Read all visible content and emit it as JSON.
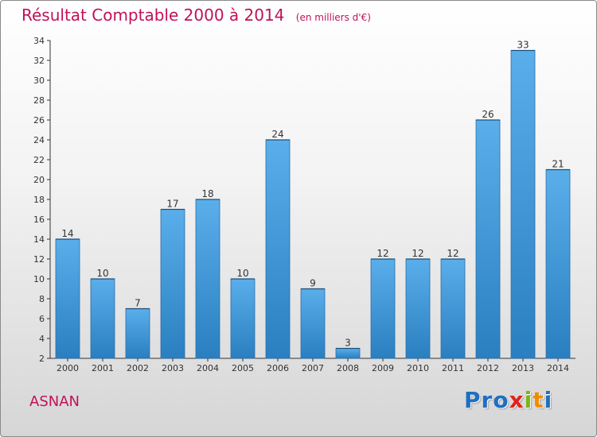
{
  "header": {
    "title": "Résultat Comptable 2000 à 2014",
    "subtitle": "(en milliers d'€)"
  },
  "footer": {
    "commune": "ASNAN",
    "logo_text": "Proxiti",
    "logo_letters": [
      {
        "ch": "P",
        "color": "#1f6fbf"
      },
      {
        "ch": "r",
        "color": "#1f6fbf"
      },
      {
        "ch": "o",
        "color": "#1f6fbf"
      },
      {
        "ch": "x",
        "color": "#e2231a"
      },
      {
        "ch": "i",
        "color": "#7cb518"
      },
      {
        "ch": "t",
        "color": "#f08c00"
      },
      {
        "ch": "i",
        "color": "#1f6fbf"
      }
    ]
  },
  "colors": {
    "accent": "#c0125a",
    "bar_top": "#5aaeea",
    "bar_bottom": "#2a7fc0"
  },
  "chart_data": {
    "type": "bar",
    "title": "Résultat Comptable 2000 à 2014",
    "subtitle": "(en milliers d'€)",
    "xlabel": "",
    "ylabel": "",
    "categories": [
      "2000",
      "2001",
      "2002",
      "2003",
      "2004",
      "2005",
      "2006",
      "2007",
      "2008",
      "2009",
      "2010",
      "2011",
      "2012",
      "2013",
      "2014"
    ],
    "values": [
      14,
      10,
      7,
      17,
      18,
      10,
      24,
      9,
      3,
      12,
      12,
      12,
      26,
      33,
      21
    ],
    "ylim": [
      2,
      34
    ],
    "yticks": [
      2,
      4,
      6,
      8,
      10,
      12,
      14,
      16,
      18,
      20,
      22,
      24,
      26,
      28,
      30,
      32,
      34
    ],
    "grid": false,
    "data_labels": true
  }
}
